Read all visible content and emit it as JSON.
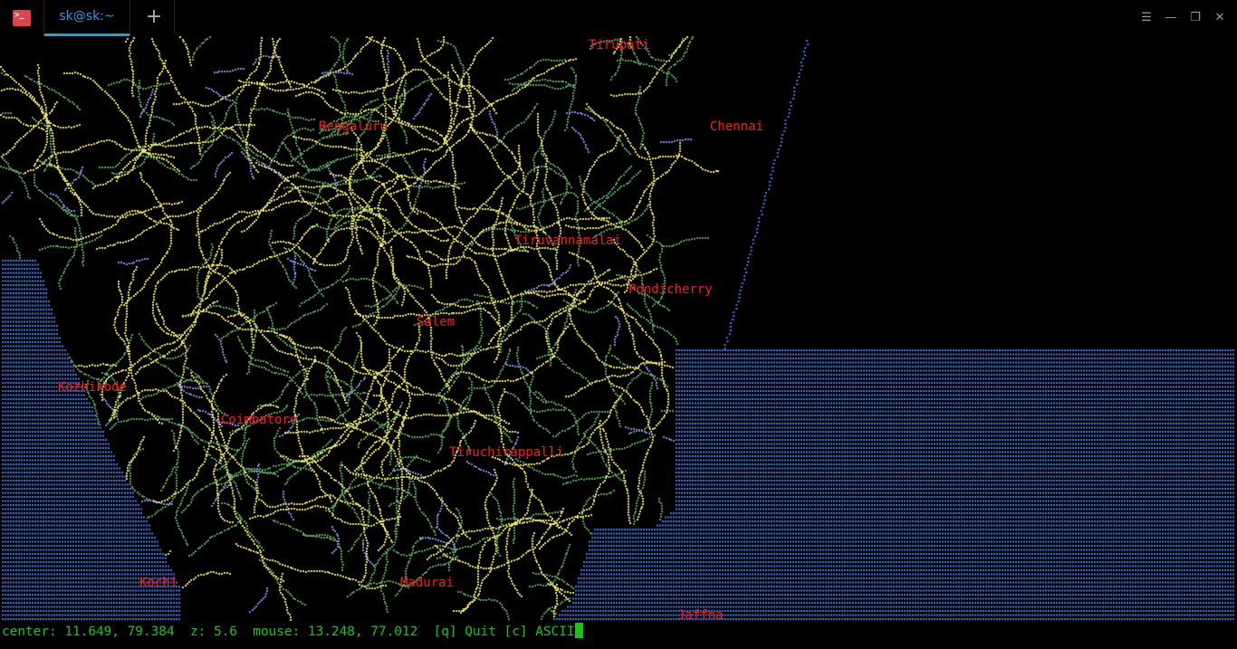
{
  "window": {
    "tab_title": "sk@sk:~",
    "app_icon": "terminal-icon",
    "buttons": [
      "menu-icon",
      "minimize-icon",
      "restore-icon",
      "close-icon"
    ]
  },
  "map": {
    "colors": {
      "ocean": "#4a7be0",
      "roads": "#e8e07a",
      "parks": "#5fa05f",
      "labels": "#ff1a1a",
      "status": "#19c419"
    },
    "cities": [
      "Tirupati",
      "Bengaluru",
      "Chennai",
      "Tiruvannamalai",
      "Pondicherry",
      "Salem",
      "Kozhikode",
      "Coimbatore",
      "Tiruchirappalli",
      "Kochi",
      "Madurai",
      "Jaffna"
    ]
  },
  "status": {
    "center_label": "center:",
    "center": "11.649, 79.384",
    "zoom_label": "z:",
    "zoom": "5.6",
    "mouse_label": "mouse:",
    "mouse": "13.248, 77.012",
    "quit": "[q] Quit",
    "ascii": "[c] ASCII"
  }
}
